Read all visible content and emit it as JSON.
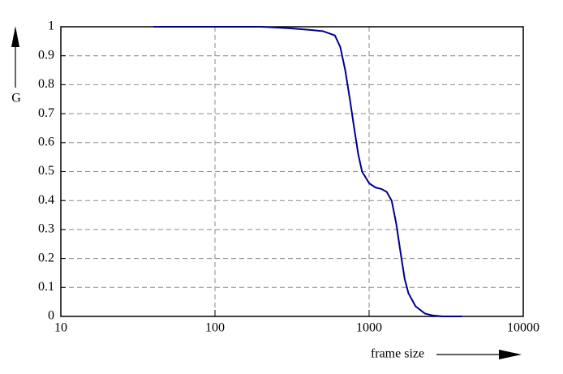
{
  "chart_data": {
    "type": "line",
    "x_label": "frame size",
    "y_label": "G",
    "xscale": "log",
    "grid": true,
    "xlim": [
      10,
      10000
    ],
    "xticks": [
      10,
      100,
      1000,
      10000
    ],
    "ylim": [
      0,
      1
    ],
    "yticks": [
      0,
      0.1,
      0.2,
      0.3,
      0.4,
      0.5,
      0.6,
      0.7,
      0.8,
      0.9,
      1
    ],
    "series": [
      {
        "color": "#00008b",
        "x": [
          40,
          100,
          200,
          300,
          400,
          500,
          600,
          650,
          700,
          750,
          800,
          850,
          900,
          1000,
          1100,
          1200,
          1300,
          1400,
          1500,
          1600,
          1700,
          1800,
          2000,
          2300,
          2600,
          3000,
          4000
        ],
        "values": [
          1,
          1,
          1,
          0.995,
          0.99,
          0.985,
          0.97,
          0.93,
          0.85,
          0.75,
          0.65,
          0.56,
          0.5,
          0.46,
          0.445,
          0.44,
          0.43,
          0.4,
          0.32,
          0.22,
          0.13,
          0.08,
          0.035,
          0.01,
          0.003,
          0,
          0
        ]
      }
    ]
  }
}
